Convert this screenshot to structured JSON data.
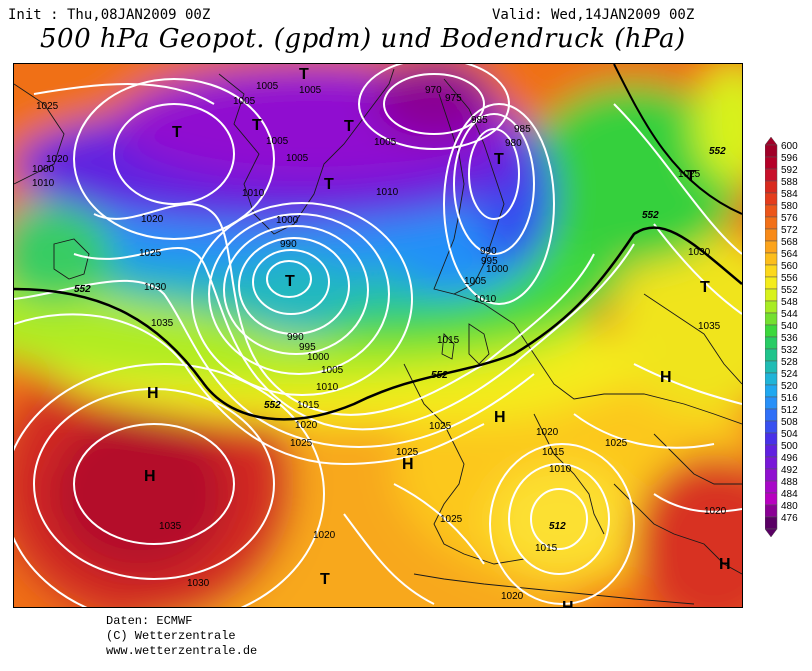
{
  "header": {
    "init": "Init : Thu,08JAN2009 00Z",
    "valid": "Valid: Wed,14JAN2009 00Z",
    "title": "500 hPa Geopot. (gpdm) und Bodendruck (hPa)"
  },
  "footer": {
    "line1": "Daten: ECMWF",
    "line2": "(C) Wetterzentrale",
    "line3": "www.wetterzentrale.de"
  },
  "legend": {
    "values": [
      "600",
      "596",
      "592",
      "588",
      "584",
      "580",
      "576",
      "572",
      "568",
      "564",
      "560",
      "556",
      "552",
      "548",
      "544",
      "540",
      "536",
      "532",
      "528",
      "524",
      "520",
      "516",
      "512",
      "508",
      "504",
      "500",
      "496",
      "492",
      "488",
      "484",
      "480",
      "476"
    ],
    "colors": [
      "#a00028",
      "#b40028",
      "#c8102a",
      "#d82a1e",
      "#e43c1c",
      "#ec561a",
      "#f27018",
      "#f88a18",
      "#fca41c",
      "#fcbe1c",
      "#fcd81c",
      "#f4ec1c",
      "#d8f21c",
      "#a8ec24",
      "#74e030",
      "#3cd83c",
      "#28cc64",
      "#20c48c",
      "#20bcb4",
      "#20b4d8",
      "#20a8f0",
      "#2890f8",
      "#3070f8",
      "#3850f0",
      "#4830e8",
      "#6020e0",
      "#7818d8",
      "#9010d0",
      "#a808c8",
      "#b800c0",
      "#8a0094",
      "#5a0064"
    ]
  },
  "map": {
    "centers": [
      {
        "letter": "T"
      },
      {
        "letter": "T"
      },
      {
        "letter": "T"
      },
      {
        "letter": "T"
      },
      {
        "letter": "T"
      },
      {
        "letter": "T"
      },
      {
        "letter": "T"
      },
      {
        "letter": "T"
      },
      {
        "letter": "T"
      },
      {
        "letter": "T"
      },
      {
        "letter": "H"
      },
      {
        "letter": "H"
      },
      {
        "letter": "H"
      },
      {
        "letter": "H"
      },
      {
        "letter": "H"
      },
      {
        "letter": "H"
      },
      {
        "letter": "H"
      }
    ],
    "isobar_labels": [
      "1025",
      "1020",
      "1010",
      "1000",
      "1005",
      "1005",
      "1005",
      "1005",
      "1005",
      "1010",
      "1005",
      "1010",
      "1020",
      "1025",
      "1030",
      "1035",
      "990",
      "995",
      "1000",
      "1005",
      "1010",
      "1015",
      "1015",
      "1020",
      "1025",
      "1025",
      "1020",
      "1015",
      "1010",
      "1025",
      "1020",
      "1025",
      "1035",
      "1030",
      "1020",
      "1020",
      "1015",
      "1025",
      "1035",
      "1030",
      "1025",
      "990",
      "995",
      "1000",
      "1005",
      "1010",
      "980",
      "985",
      "975",
      "970",
      "985",
      "990",
      "1000"
    ],
    "height_labels": [
      "552",
      "552",
      "552",
      "552",
      "552",
      "512"
    ]
  }
}
